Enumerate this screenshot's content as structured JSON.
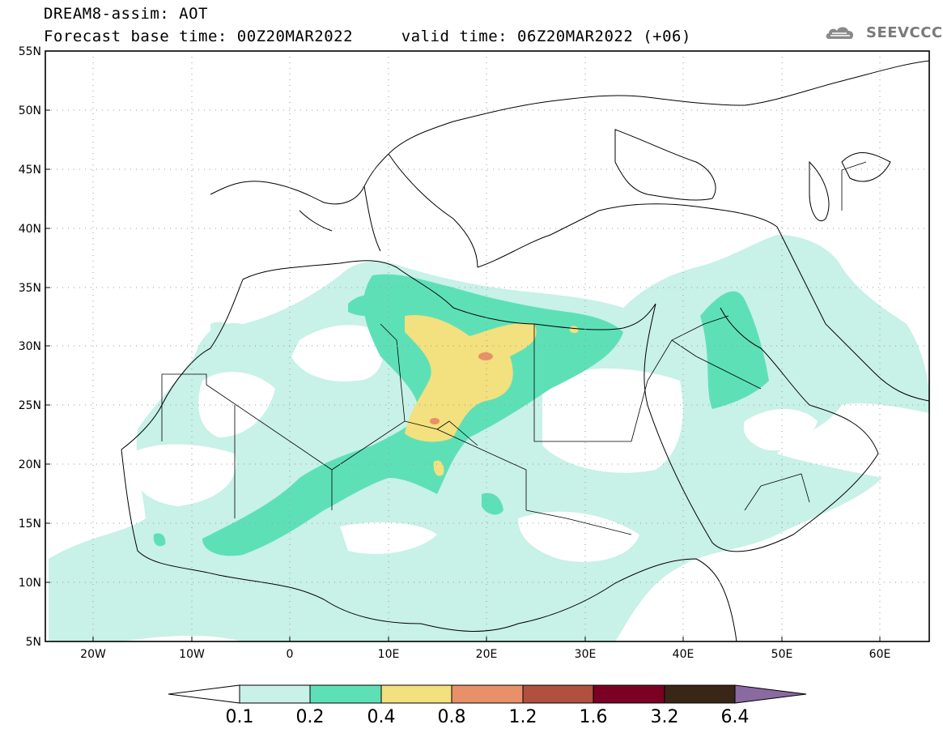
{
  "header": {
    "title": "DREAM8-assim: AOT",
    "forecast_line": "Forecast base time: 00Z20MAR2022     valid time: 06Z20MAR2022 (+06)"
  },
  "logo": {
    "text": "SEEVCCC"
  },
  "map": {
    "lon_range": [
      -25,
      65
    ],
    "lat_range": [
      5,
      55
    ],
    "lat_ticks": [
      "5N",
      "10N",
      "15N",
      "20N",
      "25N",
      "30N",
      "35N",
      "40N",
      "45N",
      "50N",
      "55N"
    ],
    "lon_ticks": [
      "20W",
      "10W",
      "0",
      "10E",
      "20E",
      "30E",
      "40E",
      "50E",
      "60E"
    ]
  },
  "colorbar": {
    "colors": [
      "#ffffff",
      "#c8f1e8",
      "#5ee0b7",
      "#f3e07e",
      "#e8906a",
      "#b0503f",
      "#7a0024",
      "#3a2616",
      "#8a6aa0"
    ],
    "labels": [
      "0.1",
      "0.2",
      "0.4",
      "0.8",
      "1.2",
      "1.6",
      "3.2",
      "6.4"
    ]
  }
}
